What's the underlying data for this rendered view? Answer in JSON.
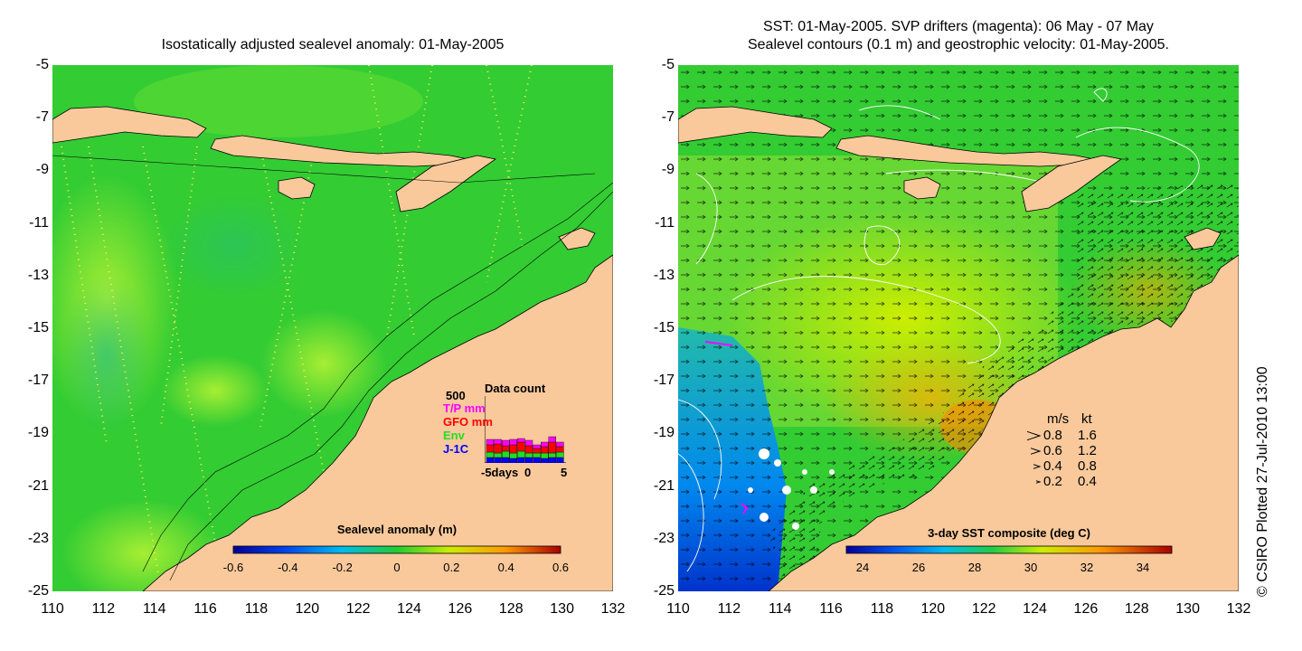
{
  "left_panel": {
    "title": "Isostatically adjusted sealevel anomaly: 01-May-2005",
    "y_ticks": [
      "-5",
      "-7",
      "-9",
      "-11",
      "-13",
      "-15",
      "-17",
      "-19",
      "-21",
      "-23",
      "-25"
    ],
    "x_ticks": [
      "110",
      "112",
      "114",
      "116",
      "118",
      "120",
      "122",
      "124",
      "126",
      "128",
      "130",
      "132"
    ],
    "colorbar": {
      "label": "Sealevel anomaly (m)",
      "ticks": [
        "-0.6",
        "-0.4",
        "-0.2",
        "0",
        "0.2",
        "0.4",
        "0.6"
      ]
    },
    "data_count": {
      "title": "Data count",
      "max_label": "500",
      "sources": [
        {
          "name": "T/P mm",
          "color": "#ff00ff"
        },
        {
          "name": "GFO mm",
          "color": "#ff0000"
        },
        {
          "name": "Env",
          "color": "#22dd22"
        },
        {
          "name": "J-1C",
          "color": "#0000ff"
        }
      ],
      "x_label_left": "-5days",
      "x_label_mid": "0",
      "x_label_right": "5"
    }
  },
  "right_panel": {
    "title_line1": "SST: 01-May-2005. SVP drifters (magenta): 06 May - 07 May",
    "title_line2": "Sealevel contours (0.1 m) and geostrophic velocity: 01-May-2005.",
    "y_ticks": [
      "-5",
      "-7",
      "-9",
      "-11",
      "-13",
      "-15",
      "-17",
      "-19",
      "-21",
      "-23",
      "-25"
    ],
    "x_ticks": [
      "110",
      "112",
      "114",
      "116",
      "118",
      "120",
      "122",
      "124",
      "126",
      "128",
      "130",
      "132"
    ],
    "colorbar": {
      "label": "3-day SST composite (deg C)",
      "ticks": [
        "24",
        "26",
        "28",
        "30",
        "32",
        "34"
      ]
    },
    "velocity_legend": {
      "header_ms": "m/s",
      "header_kt": "kt",
      "rows": [
        {
          "ms": "0.8",
          "kt": "1.6"
        },
        {
          "ms": "0.6",
          "kt": "1.2"
        },
        {
          "ms": "0.4",
          "kt": "0.8"
        },
        {
          "ms": "0.2",
          "kt": "0.4"
        }
      ]
    }
  },
  "copyright": "© CSIRO Plotted 27-Jul-2010 13:00",
  "colors": {
    "land": "#f9c99b",
    "sea_green": "#22cc33",
    "sea_light": "#88ee33",
    "sea_cyan": "#22ccaa"
  }
}
